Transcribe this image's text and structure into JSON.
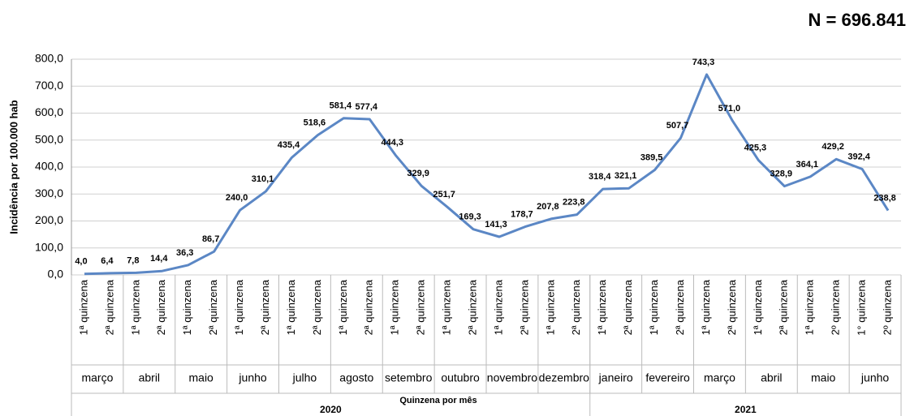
{
  "chart_data": {
    "type": "line",
    "annotation": "N = 696.841",
    "ylabel": "Incidência por 100.000 hab",
    "xlabel": "Quinzena por mês",
    "categories": [
      "1ª quinzena",
      "2ª quinzena",
      "1ª quinzena",
      "2ª quinzena",
      "1ª quinzena",
      "2ª quinzena",
      "1ª quinzena",
      "2ª quinzena",
      "1ª quinzena",
      "2ª quinzena",
      "1ª quinzena",
      "2ª quinzena",
      "1ª quinzena",
      "2ª quinzena",
      "1ª quinzena",
      "2ª quinzena",
      "1ª quinzena",
      "2ª quinzena",
      "1ª quinzena",
      "2ª quinzena",
      "1ª quinzena",
      "2ª quinzena",
      "1ª quinzena",
      "2ª quinzena",
      "1ª quinzena",
      "2ª quinzena",
      "1ª quinzena",
      "2ª quinzena",
      "1ª quinzena",
      "2º quinzena",
      "1° quinzena",
      "2º quinzena"
    ],
    "years": [
      {
        "name": "2020",
        "months": [
          "março",
          "abril",
          "maio",
          "junho",
          "julho",
          "agosto",
          "setembro",
          "outubro",
          "novembro",
          "dezembro"
        ]
      },
      {
        "name": "2021",
        "months": [
          "janeiro",
          "fevereiro",
          "março",
          "abril",
          "maio",
          "junho"
        ]
      }
    ],
    "values": [
      4.0,
      6.4,
      7.8,
      14.4,
      36.3,
      86.7,
      240.0,
      310.1,
      435.4,
      518.6,
      581.4,
      577.4,
      444.3,
      329.9,
      251.7,
      169.3,
      141.3,
      178.7,
      207.8,
      223.8,
      318.4,
      321.1,
      389.5,
      507.7,
      743.3,
      571.0,
      425.3,
      328.9,
      364.1,
      429.2,
      392.4,
      238.8
    ],
    "value_labels": [
      "4,0",
      "6,4",
      "7,8",
      "14,4",
      "36,3",
      "86,7",
      "240,0",
      "310,1",
      "435,4",
      "518,6",
      "581,4",
      "577,4",
      "444,3",
      "329,9",
      "251,7",
      "169,3",
      "141,3",
      "178,7",
      "207,8",
      "223,8",
      "318,4",
      "321,1",
      "389,5",
      "507,7",
      "743,3",
      "571,0",
      "425,3",
      "328,9",
      "364,1",
      "429,2",
      "392,4",
      "238,8"
    ],
    "color": "#5b87c5",
    "ylim": [
      0,
      800
    ],
    "yticks": [
      {
        "value": 0,
        "label": "0,0"
      },
      {
        "value": 100,
        "label": "100,0"
      },
      {
        "value": 200,
        "label": "200,0"
      },
      {
        "value": 300,
        "label": "300,0"
      },
      {
        "value": 400,
        "label": "400,0"
      },
      {
        "value": 500,
        "label": "500,0"
      },
      {
        "value": 600,
        "label": "600,0"
      },
      {
        "value": 700,
        "label": "700,0"
      },
      {
        "value": 800,
        "label": "800,0"
      }
    ],
    "grid": true
  }
}
